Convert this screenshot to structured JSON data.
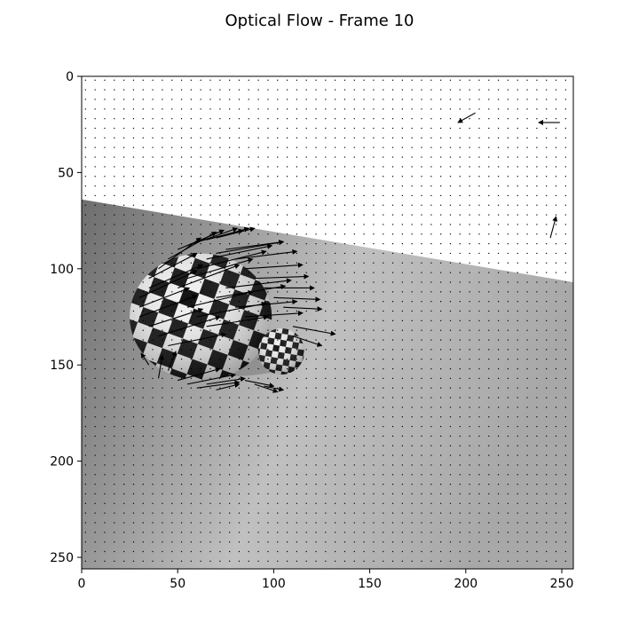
{
  "chart_data": {
    "type": "quiver",
    "title": "Optical Flow - Frame 10",
    "xlabel": "",
    "ylabel": "",
    "xlim": [
      0,
      256
    ],
    "ylim": [
      256,
      0
    ],
    "y_inverted": true,
    "x_ticks": [
      "0",
      "50",
      "100",
      "150",
      "200",
      "250"
    ],
    "y_ticks": [
      "0",
      "50",
      "100",
      "150",
      "200",
      "250"
    ],
    "grid": false,
    "legend": "none",
    "quiver_grid_step": 5,
    "background_image": {
      "description_free": true,
      "sky_color": "#ffffff",
      "floor_left_color": "#6e6e6e",
      "floor_right_color": "#b4b4b4",
      "horizon_left": [
        0,
        64
      ],
      "horizon_right": [
        256,
        107
      ],
      "large_sphere": {
        "center": [
          62,
          125
        ],
        "radius_x": 37,
        "radius_y": 33
      },
      "small_sphere": {
        "center": [
          104,
          143
        ],
        "radius": 12
      }
    },
    "flow_vectors": [
      {
        "x": 205,
        "y": 19,
        "u": -9,
        "v": 5
      },
      {
        "x": 249,
        "y": 24,
        "u": -11,
        "v": 0
      },
      {
        "x": 244,
        "y": 84,
        "u": 3,
        "v": -11
      },
      {
        "x": 40,
        "y": 100,
        "u": 22,
        "v": -16
      },
      {
        "x": 45,
        "y": 95,
        "u": 25,
        "v": -14
      },
      {
        "x": 50,
        "y": 90,
        "u": 24,
        "v": -10
      },
      {
        "x": 55,
        "y": 88,
        "u": 26,
        "v": -9
      },
      {
        "x": 60,
        "y": 86,
        "u": 24,
        "v": -6
      },
      {
        "x": 65,
        "y": 85,
        "u": 22,
        "v": -6
      },
      {
        "x": 70,
        "y": 84,
        "u": 20,
        "v": -5
      },
      {
        "x": 35,
        "y": 105,
        "u": 25,
        "v": -13
      },
      {
        "x": 35,
        "y": 110,
        "u": 28,
        "v": -12
      },
      {
        "x": 30,
        "y": 115,
        "u": 30,
        "v": -14
      },
      {
        "x": 30,
        "y": 120,
        "u": 26,
        "v": -10
      },
      {
        "x": 30,
        "y": 125,
        "u": 30,
        "v": -11
      },
      {
        "x": 35,
        "y": 130,
        "u": 28,
        "v": -9
      },
      {
        "x": 40,
        "y": 135,
        "u": 32,
        "v": -10
      },
      {
        "x": 45,
        "y": 140,
        "u": 30,
        "v": -6
      },
      {
        "x": 50,
        "y": 110,
        "u": 32,
        "v": -12
      },
      {
        "x": 55,
        "y": 105,
        "u": 34,
        "v": -10
      },
      {
        "x": 60,
        "y": 100,
        "u": 36,
        "v": -9
      },
      {
        "x": 65,
        "y": 95,
        "u": 34,
        "v": -7
      },
      {
        "x": 70,
        "y": 92,
        "u": 35,
        "v": -6
      },
      {
        "x": 75,
        "y": 90,
        "u": 30,
        "v": -4
      },
      {
        "x": 80,
        "y": 95,
        "u": 32,
        "v": -4
      },
      {
        "x": 85,
        "y": 100,
        "u": 30,
        "v": -2
      },
      {
        "x": 90,
        "y": 105,
        "u": 28,
        "v": -1
      },
      {
        "x": 95,
        "y": 110,
        "u": 26,
        "v": 0
      },
      {
        "x": 100,
        "y": 115,
        "u": 24,
        "v": 1
      },
      {
        "x": 105,
        "y": 120,
        "u": 20,
        "v": 1
      },
      {
        "x": 55,
        "y": 120,
        "u": 34,
        "v": -8
      },
      {
        "x": 60,
        "y": 125,
        "u": 36,
        "v": -7
      },
      {
        "x": 65,
        "y": 130,
        "u": 32,
        "v": -5
      },
      {
        "x": 70,
        "y": 115,
        "u": 36,
        "v": -6
      },
      {
        "x": 75,
        "y": 110,
        "u": 34,
        "v": -4
      },
      {
        "x": 80,
        "y": 120,
        "u": 32,
        "v": -3
      },
      {
        "x": 85,
        "y": 125,
        "u": 30,
        "v": -2
      },
      {
        "x": 110,
        "y": 130,
        "u": 22,
        "v": 4
      },
      {
        "x": 110,
        "y": 135,
        "u": 15,
        "v": 5
      },
      {
        "x": 35,
        "y": 150,
        "u": -4,
        "v": -6
      },
      {
        "x": 40,
        "y": 157,
        "u": 2,
        "v": -12
      },
      {
        "x": 45,
        "y": 153,
        "u": 4,
        "v": -10
      },
      {
        "x": 50,
        "y": 158,
        "u": 22,
        "v": -6
      },
      {
        "x": 55,
        "y": 160,
        "u": 25,
        "v": -5
      },
      {
        "x": 60,
        "y": 162,
        "u": 22,
        "v": -3
      },
      {
        "x": 65,
        "y": 160,
        "u": 20,
        "v": -3
      },
      {
        "x": 70,
        "y": 163,
        "u": 12,
        "v": -3
      },
      {
        "x": 85,
        "y": 158,
        "u": 15,
        "v": 3
      },
      {
        "x": 90,
        "y": 160,
        "u": 12,
        "v": 4
      },
      {
        "x": 95,
        "y": 161,
        "u": 10,
        "v": 2
      }
    ]
  }
}
